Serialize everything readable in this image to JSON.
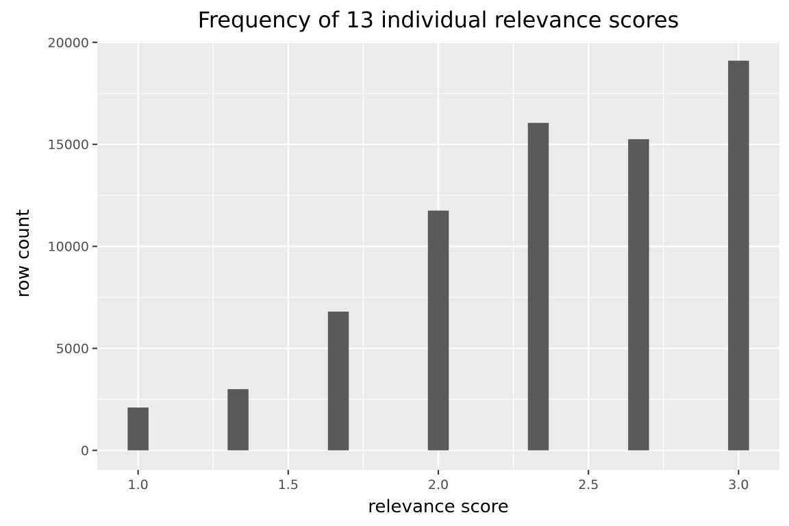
{
  "chart_data": {
    "type": "bar",
    "title": "Frequency of 13 individual relevance scores",
    "xlabel": "relevance score",
    "ylabel": "row count",
    "x": [
      1.0,
      1.333,
      1.667,
      2.0,
      2.333,
      2.667,
      3.0
    ],
    "values": [
      2100,
      3000,
      6800,
      11750,
      16050,
      15250,
      19100
    ],
    "xlim": [
      0.864,
      3.136
    ],
    "ylim": [
      -955,
      20060
    ],
    "x_ticks": [
      {
        "value": 1.0,
        "label": "1.0"
      },
      {
        "value": 1.5,
        "label": "1.5"
      },
      {
        "value": 2.0,
        "label": "2.0"
      },
      {
        "value": 2.5,
        "label": "2.5"
      },
      {
        "value": 3.0,
        "label": "3.0"
      }
    ],
    "y_ticks": [
      {
        "value": 0,
        "label": "0"
      },
      {
        "value": 5000,
        "label": "5000"
      },
      {
        "value": 10000,
        "label": "10000"
      },
      {
        "value": 15000,
        "label": "15000"
      },
      {
        "value": 20000,
        "label": "20000"
      }
    ],
    "grid": true,
    "legend": false,
    "colors": {
      "bar": "#595959",
      "panel_background": "#ebebeb",
      "grid": "#ffffff"
    }
  }
}
